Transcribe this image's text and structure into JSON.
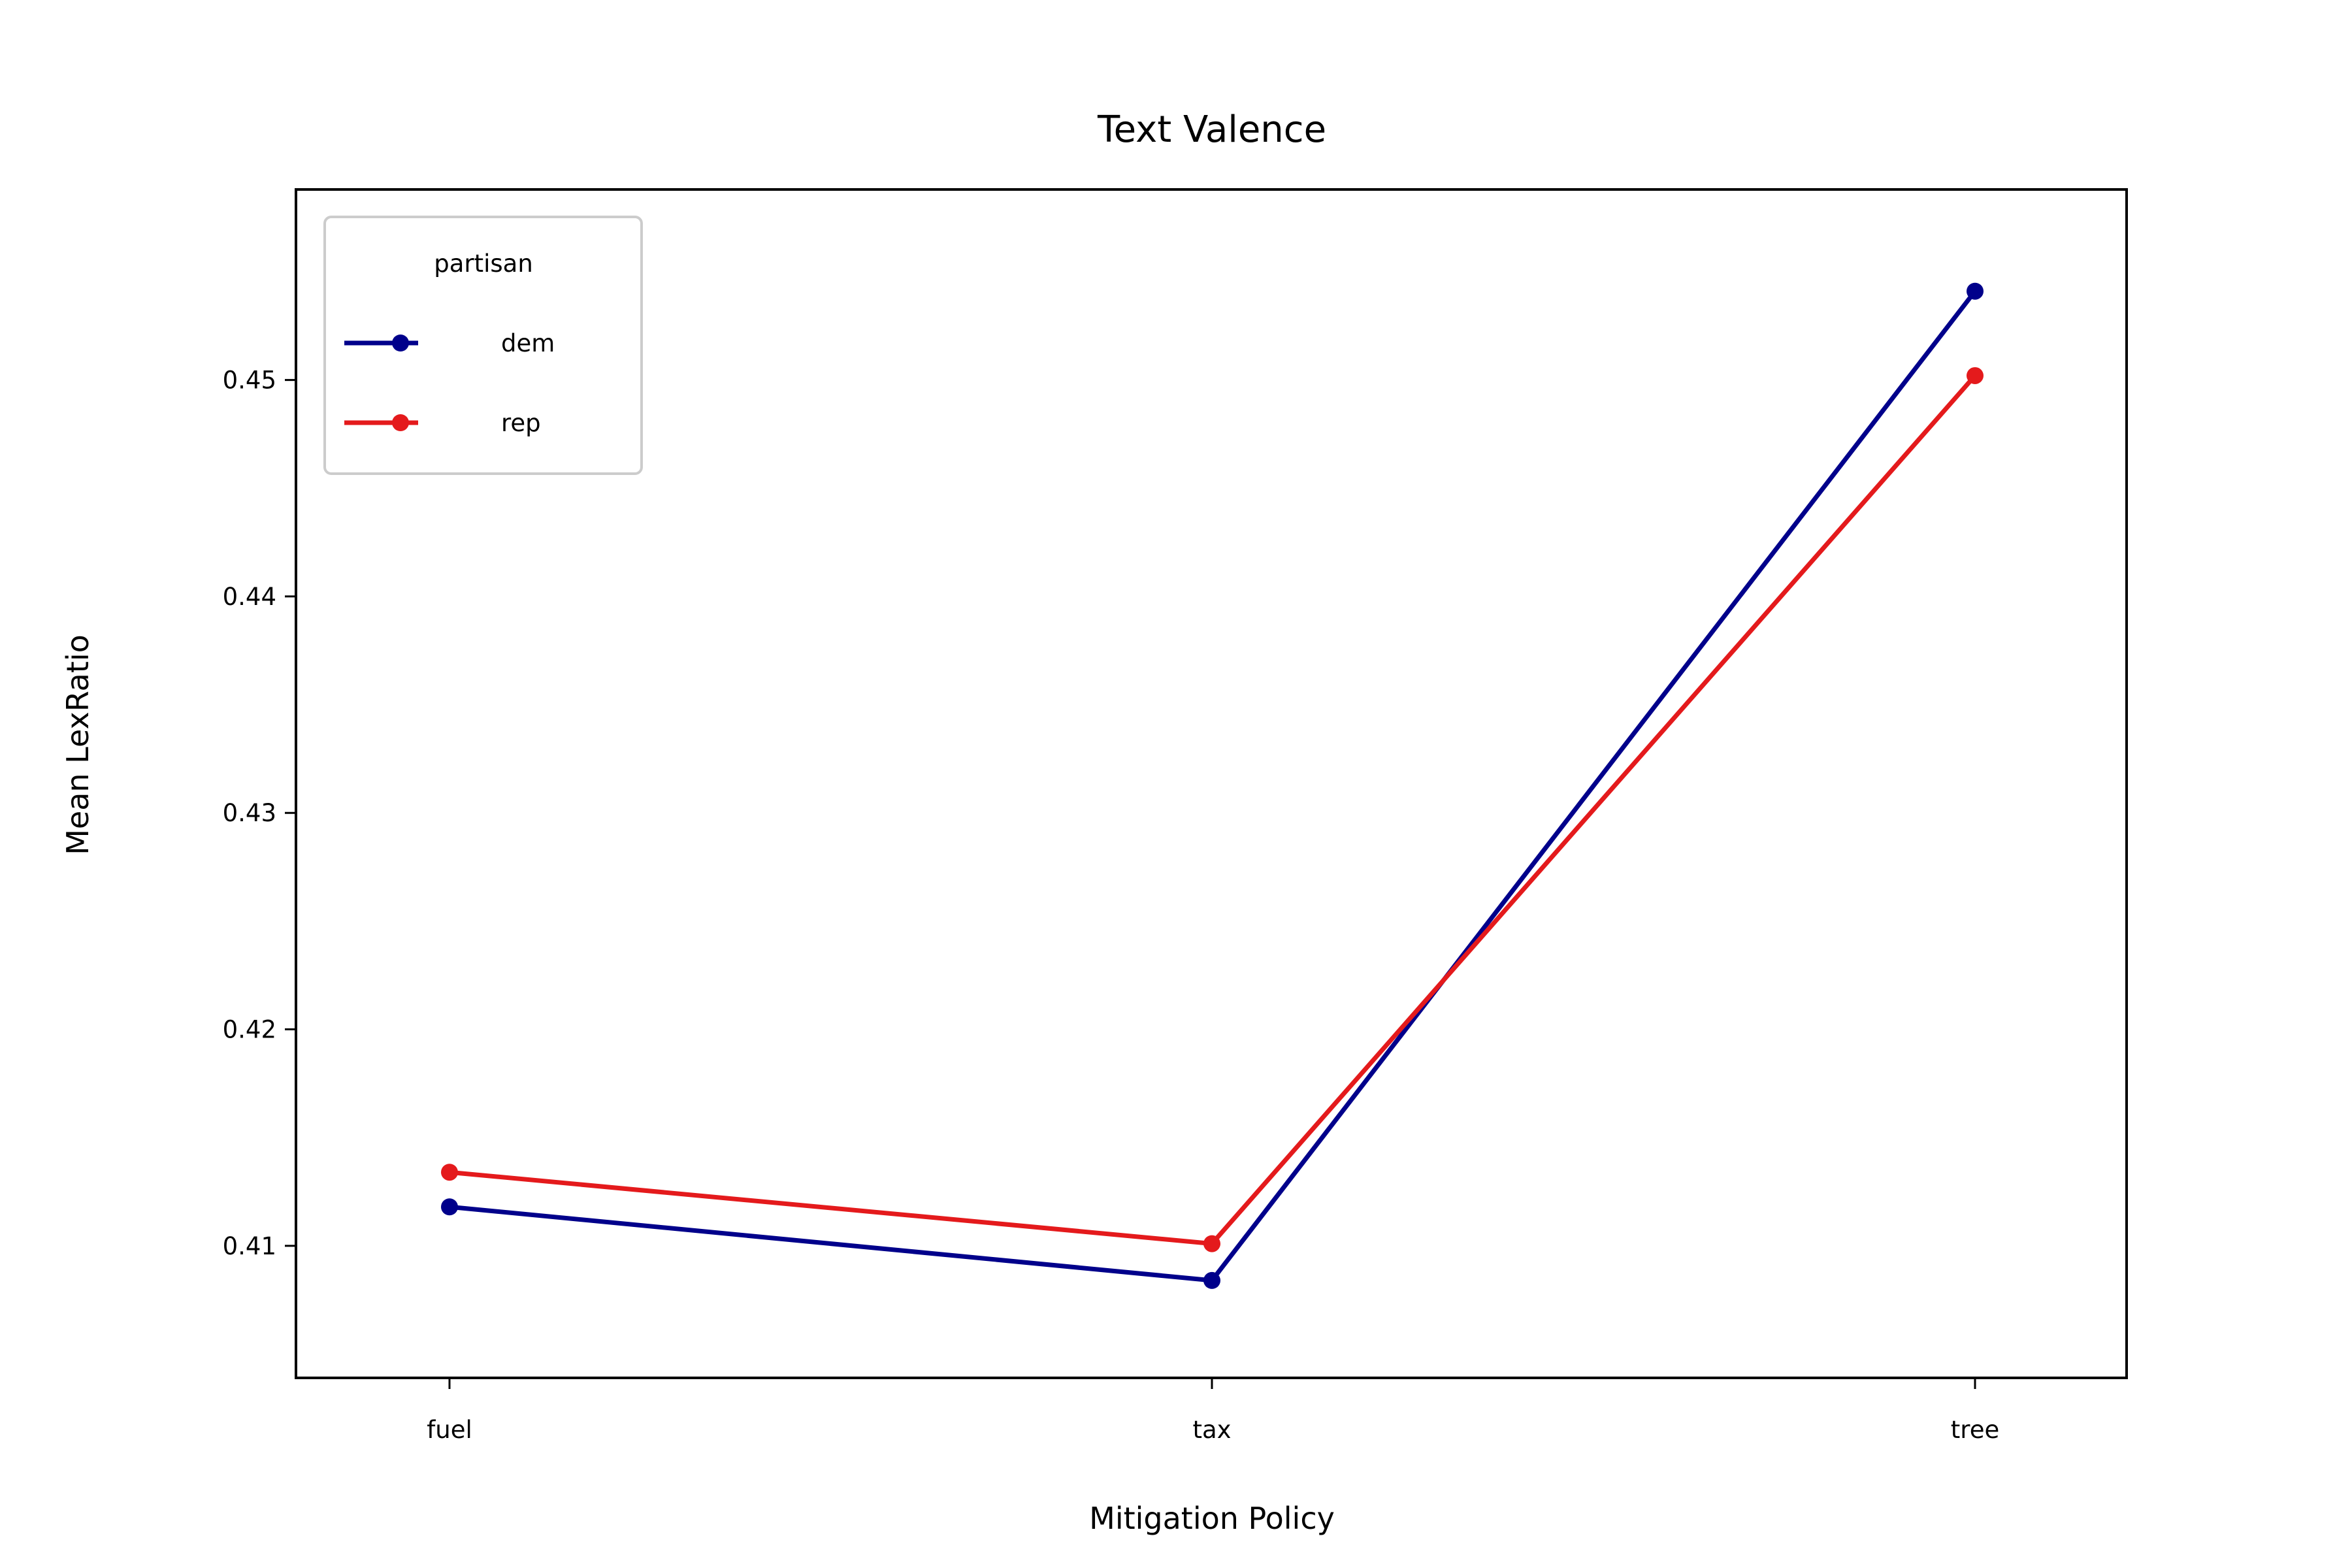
{
  "chart_data": {
    "type": "line",
    "title": "Text Valence",
    "xlabel": "Mitigation Policy",
    "ylabel": "Mean LexRatio",
    "categories": [
      "fuel",
      "tax",
      "tree"
    ],
    "y_ticks": [
      0.41,
      0.42,
      0.43,
      0.44,
      0.45
    ],
    "y_tick_labels": [
      "0.41",
      "0.42",
      "0.43",
      "0.44",
      "0.45"
    ],
    "ylim": [
      0.4039,
      0.4588
    ],
    "legend": {
      "title": "partisan",
      "location": "upper-left"
    },
    "grid": false,
    "series": [
      {
        "name": "dem",
        "color": "#00008b",
        "values": [
          0.4118,
          0.4084,
          0.4541
        ]
      },
      {
        "name": "rep",
        "color": "#e41a1c",
        "values": [
          0.4134,
          0.4101,
          0.4502
        ]
      }
    ]
  }
}
